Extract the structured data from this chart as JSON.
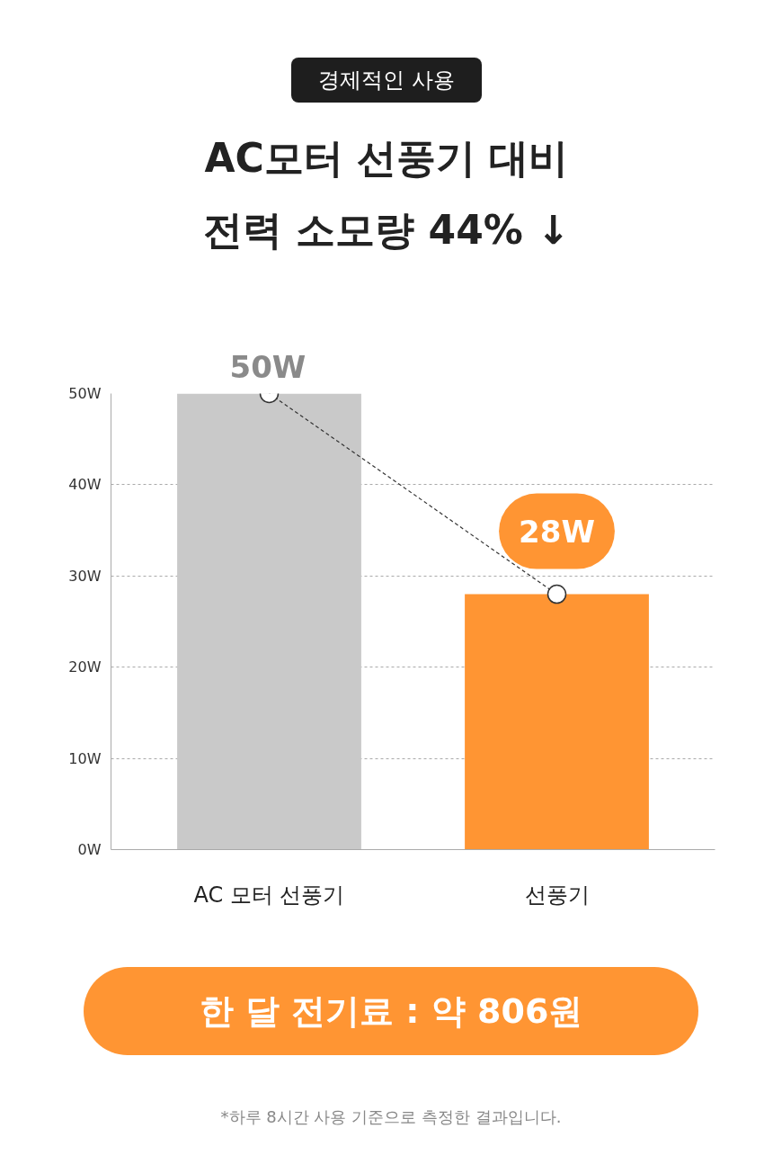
{
  "chart_data": {
    "type": "bar",
    "title": "AC모터 선풍기 대비\n전력 소모량 44% ↓",
    "subtitle": "경제적인 사용",
    "categories": [
      "AC 모터 선풍기",
      "선풍기"
    ],
    "series": [
      {
        "colors": [
          "#c9c9c9",
          "#ff9533"
        ],
        "values": [
          50,
          28
        ],
        "value_labels": [
          "50W",
          "28W"
        ]
      },
      {
        "type": "line",
        "color": "#333333",
        "values": [
          50,
          28
        ],
        "line_style": "dashed",
        "marker": "circle"
      }
    ],
    "ylim": [
      0,
      50
    ],
    "yticks": [
      {
        "value": 0,
        "label": "0W"
      },
      {
        "value": 10,
        "label": "10W"
      },
      {
        "value": 20,
        "label": "20W"
      },
      {
        "value": 30,
        "label": "30W"
      },
      {
        "value": 40,
        "label": "40W"
      },
      {
        "value": 50,
        "label": "50W"
      }
    ],
    "grid": "y",
    "annotations": [
      "한 달 전기료 : 약 806원",
      "*하루 8시간 사용 기준으로 측정한 결과입니다."
    ]
  }
}
